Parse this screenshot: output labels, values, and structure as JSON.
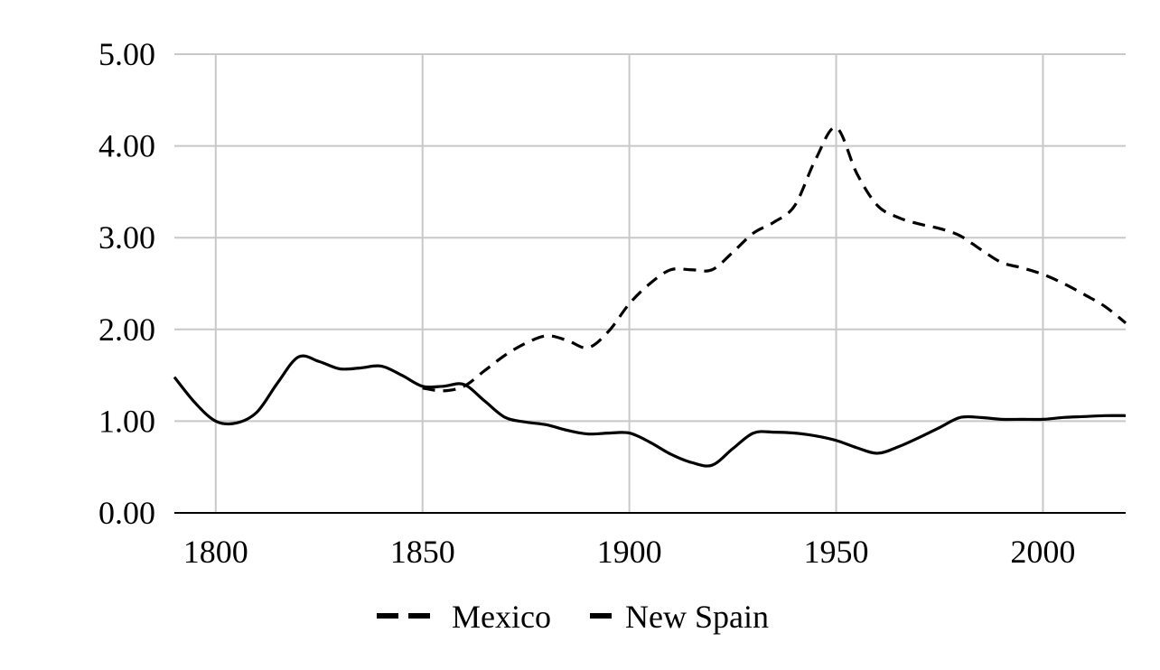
{
  "chart_data": {
    "type": "line",
    "title": "",
    "xlabel": "",
    "ylabel": "",
    "xlim": [
      1790,
      2020
    ],
    "ylim": [
      0,
      5
    ],
    "x_ticks": [
      1800,
      1850,
      1900,
      1950,
      2000
    ],
    "x_tick_labels": [
      "1800",
      "1850",
      "1900",
      "1950",
      "2000"
    ],
    "y_ticks": [
      0,
      1,
      2,
      3,
      4,
      5
    ],
    "y_tick_labels": [
      "0.00",
      "1.00",
      "2.00",
      "3.00",
      "4.00",
      "5.00"
    ],
    "grid": true,
    "legend_position": "bottom",
    "series": [
      {
        "name": "Mexico",
        "style": "dashed",
        "color": "#000000",
        "x": [
          1850,
          1855,
          1860,
          1865,
          1870,
          1875,
          1880,
          1885,
          1890,
          1895,
          1900,
          1905,
          1910,
          1915,
          1920,
          1925,
          1930,
          1935,
          1940,
          1945,
          1950,
          1955,
          1960,
          1965,
          1970,
          1975,
          1980,
          1985,
          1990,
          1995,
          2000,
          2005,
          2010,
          2015,
          2020
        ],
        "y": [
          1.36,
          1.33,
          1.38,
          1.55,
          1.72,
          1.85,
          1.93,
          1.88,
          1.8,
          1.98,
          2.28,
          2.5,
          2.65,
          2.65,
          2.65,
          2.84,
          3.05,
          3.17,
          3.35,
          3.85,
          4.2,
          3.7,
          3.35,
          3.22,
          3.15,
          3.1,
          3.02,
          2.87,
          2.73,
          2.67,
          2.6,
          2.5,
          2.38,
          2.25,
          2.07
        ]
      },
      {
        "name": "New Spain",
        "style": "solid",
        "color": "#000000",
        "x": [
          1790,
          1795,
          1800,
          1805,
          1810,
          1815,
          1820,
          1825,
          1830,
          1835,
          1840,
          1845,
          1850,
          1855,
          1860,
          1865,
          1870,
          1875,
          1880,
          1885,
          1890,
          1895,
          1900,
          1905,
          1910,
          1915,
          1920,
          1925,
          1930,
          1935,
          1940,
          1945,
          1950,
          1955,
          1960,
          1965,
          1970,
          1975,
          1980,
          1985,
          1990,
          1995,
          2000,
          2005,
          2010,
          2015,
          2020
        ],
        "y": [
          1.48,
          1.2,
          1.0,
          0.98,
          1.1,
          1.42,
          1.7,
          1.65,
          1.57,
          1.58,
          1.6,
          1.5,
          1.38,
          1.38,
          1.4,
          1.22,
          1.04,
          0.99,
          0.96,
          0.9,
          0.86,
          0.87,
          0.87,
          0.77,
          0.64,
          0.55,
          0.52,
          0.7,
          0.87,
          0.88,
          0.87,
          0.84,
          0.79,
          0.71,
          0.65,
          0.72,
          0.82,
          0.93,
          1.04,
          1.04,
          1.02,
          1.02,
          1.02,
          1.04,
          1.05,
          1.06,
          1.06
        ]
      }
    ]
  }
}
